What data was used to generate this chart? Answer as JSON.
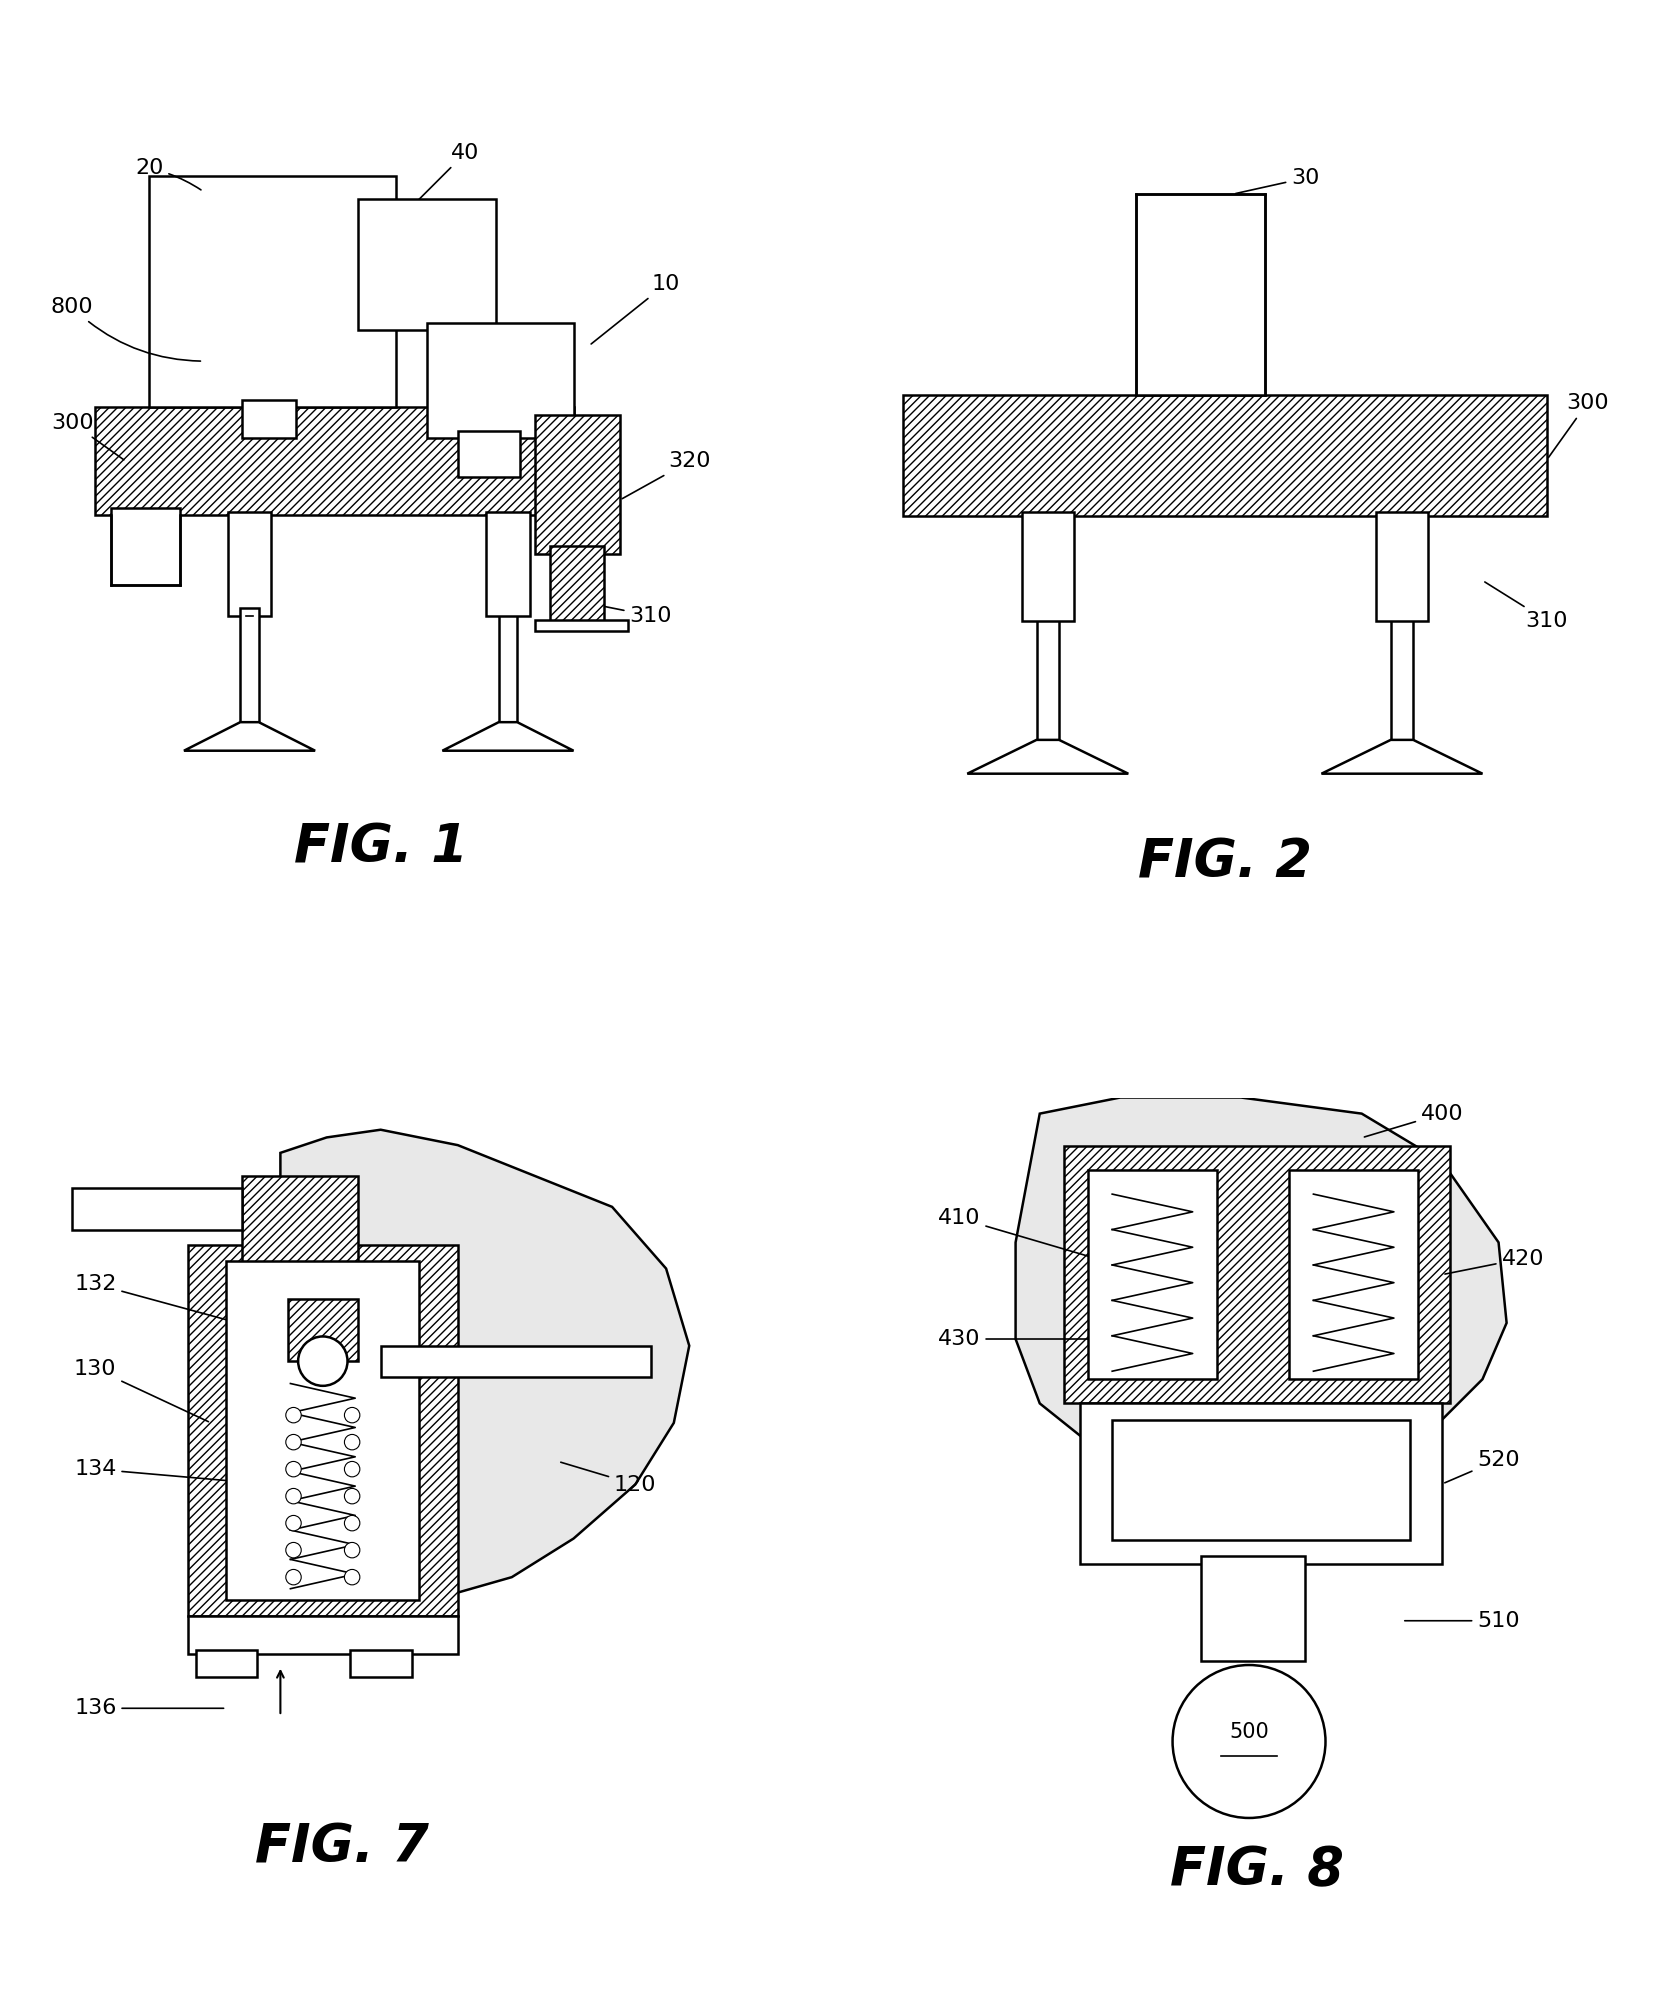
{
  "bg_color": "#ffffff",
  "line_color": "#000000",
  "fig1_label": "FIG. 1",
  "fig2_label": "FIG. 2",
  "fig7_label": "FIG. 7",
  "fig8_label": "FIG. 8",
  "annotation_fontsize": 16,
  "fig_label_fontsize": 38
}
